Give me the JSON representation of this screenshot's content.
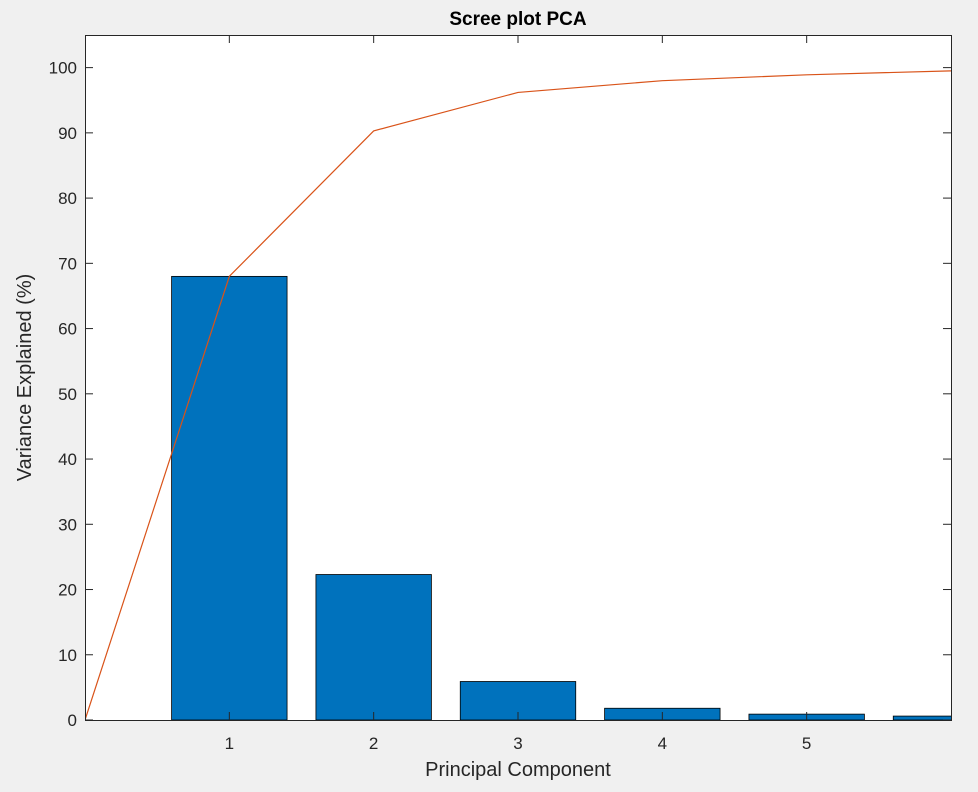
{
  "chart_data": {
    "type": "bar",
    "title": "Scree plot PCA",
    "xlabel": "Principal Component",
    "ylabel": "Variance Explained (%)",
    "x_ticks": [
      "1",
      "2",
      "3",
      "4",
      "5"
    ],
    "y_ticks": [
      "0",
      "10",
      "20",
      "30",
      "40",
      "50",
      "60",
      "70",
      "80",
      "90",
      "100"
    ],
    "xlim": [
      0,
      6
    ],
    "ylim": [
      0,
      105
    ],
    "grid": false,
    "legend": "none",
    "bar_series": {
      "x": [
        1,
        2,
        3,
        4,
        5,
        6
      ],
      "values": [
        68.0,
        22.3,
        5.9,
        1.8,
        0.9,
        0.6
      ],
      "color": "#0072BD"
    },
    "line_series": {
      "x": [
        0,
        1,
        2,
        3,
        4,
        5,
        6
      ],
      "values": [
        0,
        68.0,
        90.3,
        96.2,
        98.0,
        98.9,
        99.5
      ],
      "color": "#D95319"
    }
  }
}
